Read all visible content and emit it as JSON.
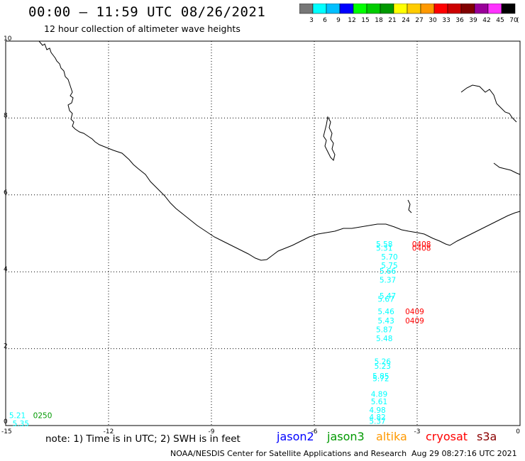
{
  "header": {
    "title": "00:00 – 11:59 UTC 08/26/2021",
    "subtitle": "12 hour collection of altimeter wave heights"
  },
  "legend": {
    "labels": [
      "3",
      "6",
      "9",
      "12",
      "15",
      "18",
      "21",
      "24",
      "27",
      "30",
      "33",
      "36",
      "39",
      "42",
      "45",
      "70"
    ],
    "unit": "(ft)",
    "colors": [
      "#777777",
      "#00ffff",
      "#00bfff",
      "#0000ff",
      "#00ff00",
      "#00cc00",
      "#009900",
      "#ffff00",
      "#ffcc00",
      "#ff9900",
      "#ff0000",
      "#cc0000",
      "#800000",
      "#990099",
      "#ff33ff",
      "#000000"
    ]
  },
  "axes": {
    "x_ticks": [
      "-15",
      "-12",
      "-9",
      "-6",
      "-3",
      "0"
    ],
    "y_ticks": [
      "0",
      "2",
      "4",
      "6",
      "8",
      "10"
    ]
  },
  "observations": [
    {
      "text": "5.58",
      "lon": -4.2,
      "lat": 4.65,
      "color": "#00ffff"
    },
    {
      "text": "5.31",
      "lon": -4.2,
      "lat": 4.55,
      "color": "#00ffff"
    },
    {
      "text": "5.70",
      "lon": -4.05,
      "lat": 4.32,
      "color": "#00ffff"
    },
    {
      "text": "5.75",
      "lon": -4.05,
      "lat": 4.1,
      "color": "#00ffff"
    },
    {
      "text": "5.66",
      "lon": -4.1,
      "lat": 3.95,
      "color": "#00ffff"
    },
    {
      "text": "5.37",
      "lon": -4.1,
      "lat": 3.72,
      "color": "#00ffff"
    },
    {
      "text": "5.47",
      "lon": -4.1,
      "lat": 3.3,
      "color": "#00ffff"
    },
    {
      "text": "5.67",
      "lon": -4.15,
      "lat": 3.22,
      "color": "#00ffff"
    },
    {
      "text": "5.46",
      "lon": -4.15,
      "lat": 2.9,
      "color": "#00ffff"
    },
    {
      "text": "5.43",
      "lon": -4.15,
      "lat": 2.66,
      "color": "#00ffff"
    },
    {
      "text": "5.87",
      "lon": -4.2,
      "lat": 2.43,
      "color": "#00ffff"
    },
    {
      "text": "5.48",
      "lon": -4.2,
      "lat": 2.2,
      "color": "#00ffff"
    },
    {
      "text": "5.26",
      "lon": -4.25,
      "lat": 1.6,
      "color": "#00ffff"
    },
    {
      "text": "5.23",
      "lon": -4.25,
      "lat": 1.48,
      "color": "#00ffff"
    },
    {
      "text": "5.85",
      "lon": -4.3,
      "lat": 1.22,
      "color": "#00ffff"
    },
    {
      "text": "5.72",
      "lon": -4.3,
      "lat": 1.15,
      "color": "#00ffff"
    },
    {
      "text": "4.89",
      "lon": -4.35,
      "lat": 0.75,
      "color": "#00ffff"
    },
    {
      "text": "5.61",
      "lon": -4.35,
      "lat": 0.55,
      "color": "#00ffff"
    },
    {
      "text": "4.98",
      "lon": -4.4,
      "lat": 0.33,
      "color": "#00ffff"
    },
    {
      "text": "4.82",
      "lon": -4.4,
      "lat": 0.15,
      "color": "#00ffff"
    },
    {
      "text": "5.37",
      "lon": -4.4,
      "lat": 0.05,
      "color": "#00ffff"
    },
    {
      "text": "5.21",
      "lon": -14.9,
      "lat": 0.19,
      "color": "#00ffff"
    },
    {
      "text": "5.35",
      "lon": -14.8,
      "lat": -0.02,
      "color": "#00ffff"
    },
    {
      "text": "0250",
      "lon": -14.2,
      "lat": 0.19,
      "color": "#009900"
    },
    {
      "text": "0408",
      "lon": -3.15,
      "lat": 4.65,
      "color": "#ff0000"
    },
    {
      "text": "0408",
      "lon": -3.15,
      "lat": 4.55,
      "color": "#ff0000"
    },
    {
      "text": "0409",
      "lon": -3.35,
      "lat": 2.9,
      "color": "#ff0000"
    },
    {
      "text": "0409",
      "lon": -3.35,
      "lat": 2.66,
      "color": "#ff0000"
    }
  ],
  "footer": {
    "note": "note:  1) Time is in UTC;  2) SWH is in feet",
    "missions": [
      {
        "name": "jason2",
        "color": "#0000ff"
      },
      {
        "name": "jason3",
        "color": "#009900"
      },
      {
        "name": "altika",
        "color": "#ff9900"
      },
      {
        "name": "cryosat",
        "color": "#ff0000"
      },
      {
        "name": "s3a",
        "color": "#8b0000"
      }
    ],
    "credit": "NOAA/NESDIS Center for Satellite Applications and Research",
    "timestamp": "Aug 29 08:27:16 UTC 2021"
  }
}
